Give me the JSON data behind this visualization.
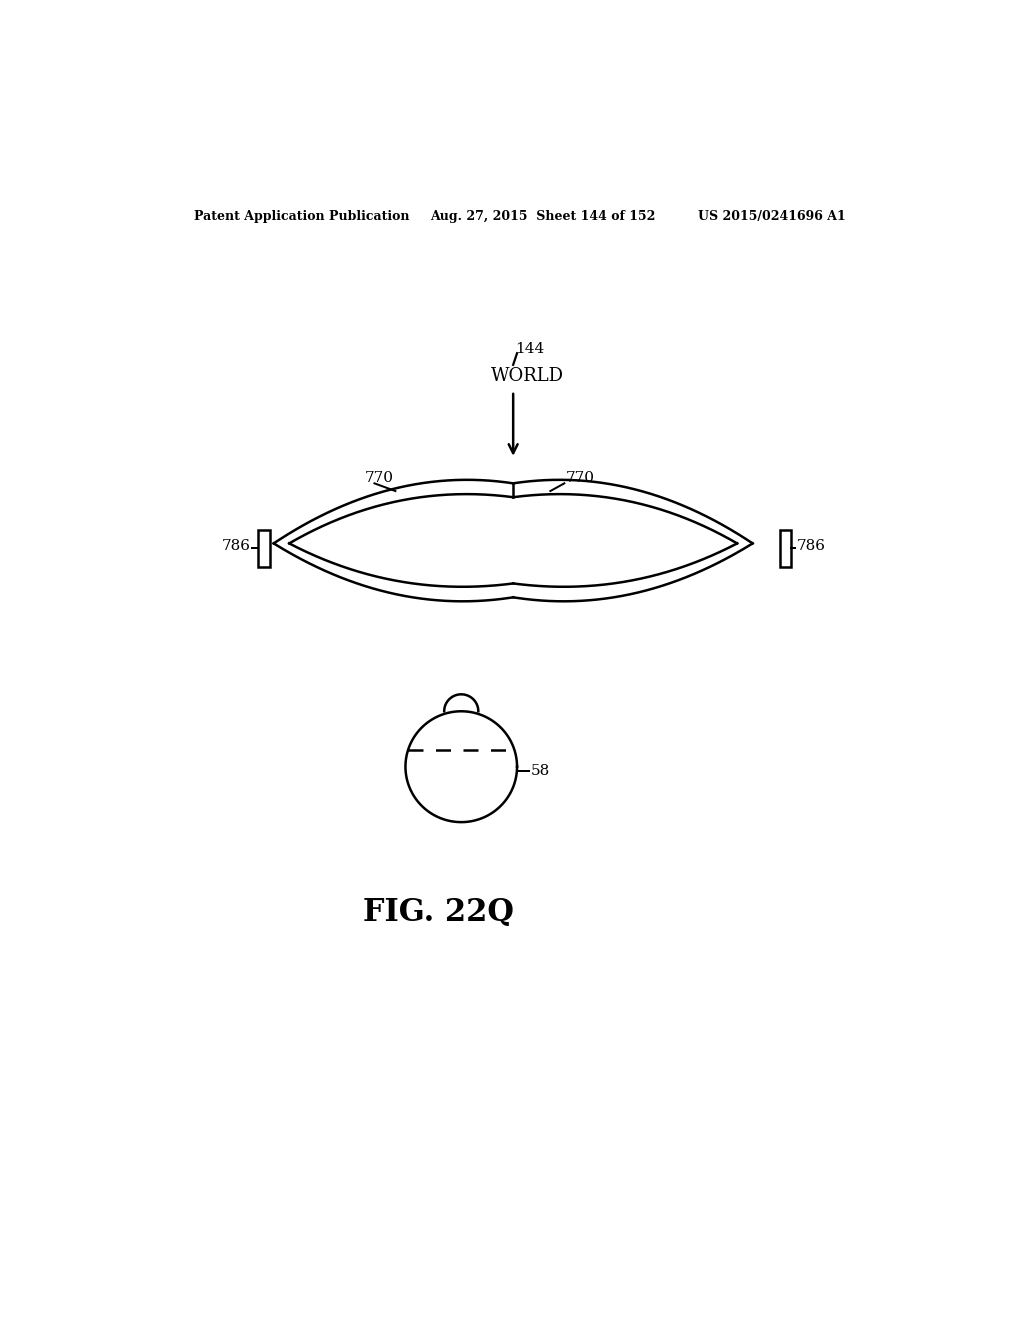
{
  "bg_color": "#ffffff",
  "header_left": "Patent Application Publication",
  "header_mid": "Aug. 27, 2015  Sheet 144 of 152",
  "header_right": "US 2015/0241696 A1",
  "fig_label": "FIG. 22Q",
  "label_144": "144",
  "label_world": "WORLD",
  "label_770_left": "770",
  "label_770_right": "770",
  "label_786_left": "786",
  "label_786_right": "786",
  "label_58": "58",
  "line_color": "#000000",
  "line_width": 1.8
}
